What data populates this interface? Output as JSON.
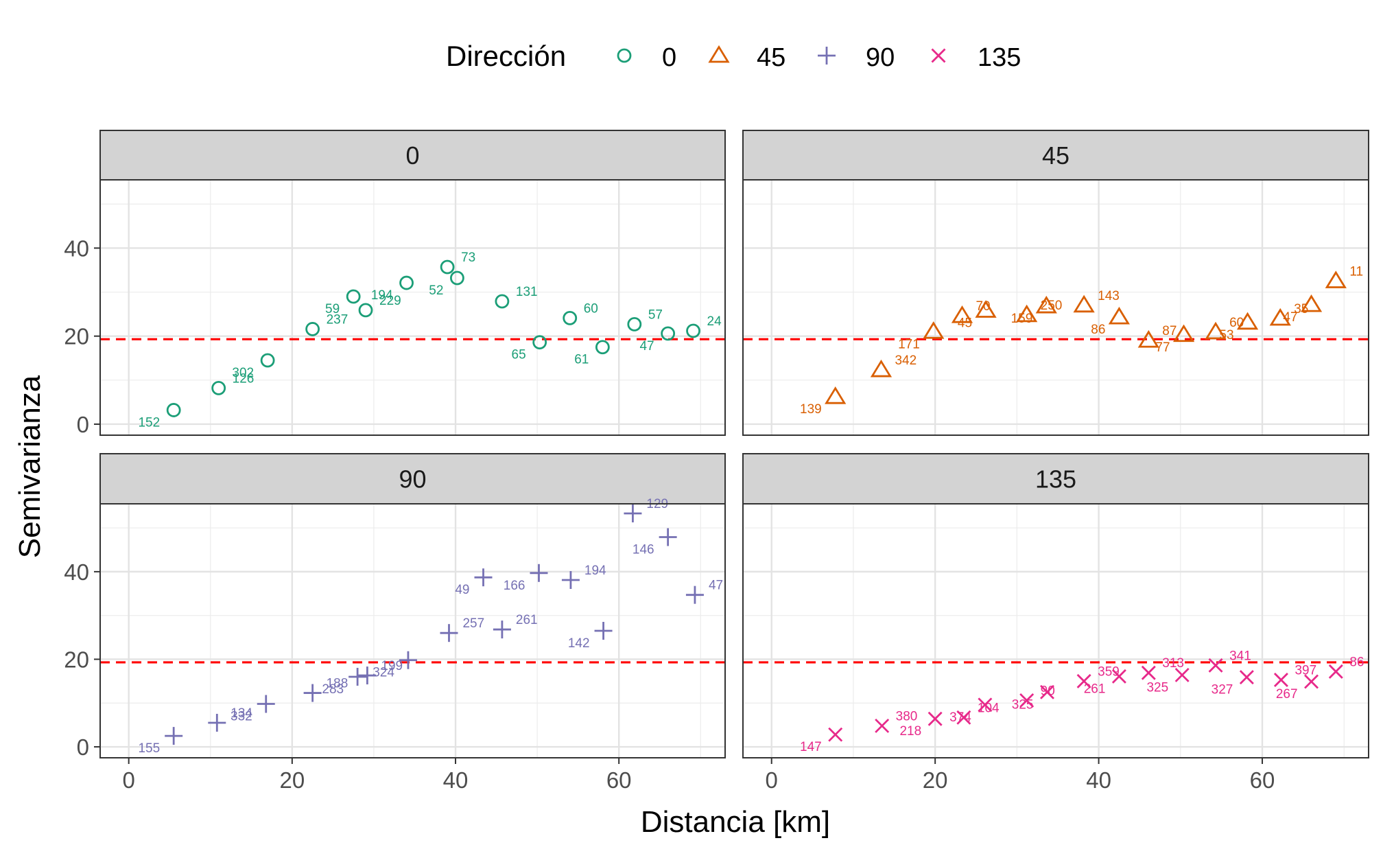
{
  "chart_data": {
    "type": "scatter",
    "legend": {
      "title": "Dirección",
      "placement": "top",
      "entries": [
        {
          "label": "0",
          "shape": "circle",
          "color": "#1b9e77"
        },
        {
          "label": "45",
          "shape": "triangle",
          "color": "#d95f02"
        },
        {
          "label": "90",
          "shape": "plus",
          "color": "#7570b3"
        },
        {
          "label": "135",
          "shape": "cross",
          "color": "#e7298a"
        }
      ]
    },
    "xlabel": "Distancia [km]",
    "ylabel": "Semivarianza",
    "xlim": [
      -3.5,
      73
    ],
    "ylim": [
      -2.5,
      55.5
    ],
    "xticks": [
      0,
      20,
      40,
      60
    ],
    "yticks": [
      0,
      20,
      40
    ],
    "grid": true,
    "reference_line": {
      "y": 19.3,
      "color": "#ff0000",
      "style": "dashed"
    },
    "panels": [
      {
        "title": "0",
        "shape": "circle",
        "color": "#1b9e77",
        "points": [
          {
            "x": 5.5,
            "y": 3.2,
            "n": "152"
          },
          {
            "x": 11,
            "y": 8.2,
            "n": "126"
          },
          {
            "x": 17,
            "y": 14.5,
            "n": "302"
          },
          {
            "x": 22.5,
            "y": 21.6,
            "n": "237"
          },
          {
            "x": 27.5,
            "y": 29,
            "n": "59"
          },
          {
            "x": 29,
            "y": 25.9,
            "n": "229"
          },
          {
            "x": 34,
            "y": 32.1,
            "n": "194"
          },
          {
            "x": 39,
            "y": 35.7,
            "n": "73"
          },
          {
            "x": 40.2,
            "y": 33.2,
            "n": "52"
          },
          {
            "x": 45.7,
            "y": 27.9,
            "n": "131"
          },
          {
            "x": 50.3,
            "y": 18.6,
            "n": "65"
          },
          {
            "x": 54,
            "y": 24.1,
            "n": "60"
          },
          {
            "x": 58,
            "y": 17.5,
            "n": "61"
          },
          {
            "x": 61.9,
            "y": 22.7,
            "n": "57"
          },
          {
            "x": 66,
            "y": 20.6,
            "n": "47"
          },
          {
            "x": 69.1,
            "y": 21.2,
            "n": "24"
          }
        ]
      },
      {
        "title": "45",
        "shape": "triangle",
        "color": "#d95f02",
        "points": [
          {
            "x": 7.8,
            "y": 6.2,
            "n": "139"
          },
          {
            "x": 13.4,
            "y": 12.3,
            "n": "342"
          },
          {
            "x": 19.8,
            "y": 21,
            "n": "171"
          },
          {
            "x": 23.3,
            "y": 24.6,
            "n": "70"
          },
          {
            "x": 26.2,
            "y": 25.8,
            "n": "45"
          },
          {
            "x": 31.2,
            "y": 24.8,
            "n": "250"
          },
          {
            "x": 33.6,
            "y": 26.8,
            "n": "159"
          },
          {
            "x": 38.2,
            "y": 27,
            "n": "143"
          },
          {
            "x": 42.5,
            "y": 24.3,
            "n": "86"
          },
          {
            "x": 46.1,
            "y": 19,
            "n": "87"
          },
          {
            "x": 50.4,
            "y": 20.3,
            "n": "77"
          },
          {
            "x": 54.3,
            "y": 20.9,
            "n": "60"
          },
          {
            "x": 58.2,
            "y": 23.1,
            "n": "53"
          },
          {
            "x": 62.2,
            "y": 24,
            "n": "35"
          },
          {
            "x": 66,
            "y": 27.1,
            "n": "47"
          },
          {
            "x": 69,
            "y": 32.5,
            "n": "11"
          }
        ]
      },
      {
        "title": "90",
        "shape": "plus",
        "color": "#7570b3",
        "points": [
          {
            "x": 5.5,
            "y": 2.5,
            "n": "155"
          },
          {
            "x": 10.8,
            "y": 5.5,
            "n": "134"
          },
          {
            "x": 16.8,
            "y": 9.8,
            "n": "332"
          },
          {
            "x": 22.5,
            "y": 12.3,
            "n": "188"
          },
          {
            "x": 28,
            "y": 16,
            "n": "283"
          },
          {
            "x": 29.2,
            "y": 16.3,
            "n": "199"
          },
          {
            "x": 34.2,
            "y": 19.8,
            "n": "324"
          },
          {
            "x": 39.2,
            "y": 26,
            "n": "257"
          },
          {
            "x": 43.4,
            "y": 38.7,
            "n": "49"
          },
          {
            "x": 45.7,
            "y": 26.8,
            "n": "261"
          },
          {
            "x": 50.2,
            "y": 39.7,
            "n": "166"
          },
          {
            "x": 54.1,
            "y": 38.1,
            "n": "194"
          },
          {
            "x": 58.1,
            "y": 26.5,
            "n": "142"
          },
          {
            "x": 61.7,
            "y": 53.3,
            "n": "129"
          },
          {
            "x": 66,
            "y": 47.9,
            "n": "146"
          },
          {
            "x": 69.3,
            "y": 34.7,
            "n": "47"
          }
        ]
      },
      {
        "title": "135",
        "shape": "cross",
        "color": "#e7298a",
        "points": [
          {
            "x": 7.8,
            "y": 2.8,
            "n": "147"
          },
          {
            "x": 13.5,
            "y": 4.8,
            "n": "380"
          },
          {
            "x": 20,
            "y": 6.4,
            "n": "218"
          },
          {
            "x": 23.5,
            "y": 6.7,
            "n": "104"
          },
          {
            "x": 26.1,
            "y": 9.6,
            "n": "374"
          },
          {
            "x": 31.2,
            "y": 10.6,
            "n": "90"
          },
          {
            "x": 33.7,
            "y": 12.5,
            "n": "325"
          },
          {
            "x": 38.2,
            "y": 15,
            "n": "359"
          },
          {
            "x": 42.5,
            "y": 16.1,
            "n": "261"
          },
          {
            "x": 46.1,
            "y": 16.9,
            "n": "313"
          },
          {
            "x": 50.2,
            "y": 16.4,
            "n": "325"
          },
          {
            "x": 54.3,
            "y": 18.6,
            "n": "341"
          },
          {
            "x": 58.1,
            "y": 15.9,
            "n": "327"
          },
          {
            "x": 62.3,
            "y": 15.3,
            "n": "397"
          },
          {
            "x": 66,
            "y": 14.9,
            "n": "267"
          },
          {
            "x": 69,
            "y": 17.2,
            "n": "86"
          }
        ]
      }
    ]
  }
}
